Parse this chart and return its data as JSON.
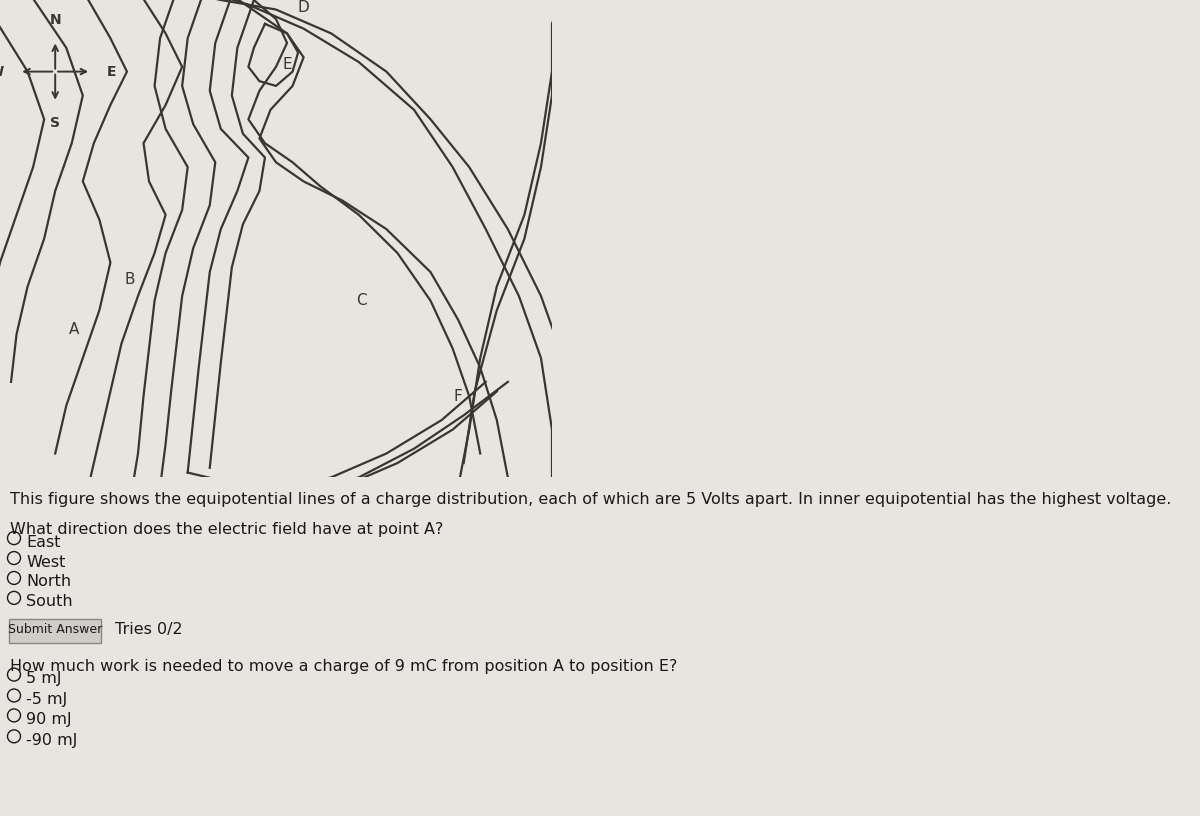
{
  "bg_color": "#e8e5e1",
  "drawing_bg": "#ede9e4",
  "line_color": "#3a3530",
  "line_width": 1.6,
  "title_text": "This figure shows the equipotential lines of a charge distribution, each of which are 5 Volts apart. In inner equipotential has the highest voltage.",
  "q1_text": "What direction does the electric field have at point A?",
  "q1_options": [
    "East",
    "West",
    "North",
    "South"
  ],
  "submit_text": "Submit Answer",
  "tries_text": "Tries 0/2",
  "q2_text": "How much work is needed to move a charge of 9 mC from position A to position E?",
  "q2_options": [
    "5 mJ",
    "-5 mJ",
    "90 mJ",
    "-90 mJ"
  ],
  "text_color": "#1a1a1a",
  "font_size_label": 11,
  "font_size_text": 11.5
}
